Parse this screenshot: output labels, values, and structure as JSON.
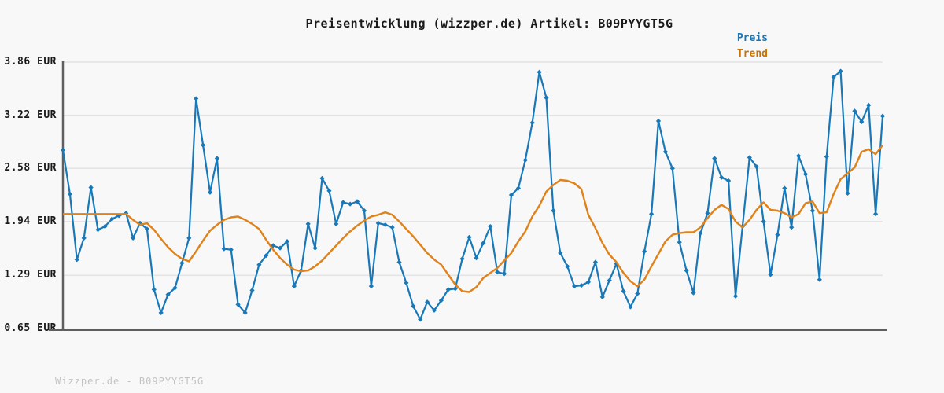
{
  "title": "Preisentwicklung (wizzper.de) Artikel: B09PYYGT5G",
  "legend": {
    "preis": "Preis",
    "trend": "Trend"
  },
  "footer": "Wizzper.de - B09PYYGT5G",
  "colors": {
    "background": "#f8f8f8",
    "price_line": "#1878b8",
    "trend_line": "#e0821a",
    "legend_preis_text": "#1777b8",
    "legend_trend_text": "#cc7400",
    "grid": "#e3e3e3",
    "axis": "#5f5f5f",
    "title_text": "#1a1a1a",
    "footer_text": "#c3c3c3"
  },
  "chart_data": {
    "type": "line",
    "title": "Preisentwicklung (wizzper.de) Artikel: B09PYYGT5G",
    "xlabel": "",
    "ylabel": "EUR",
    "x_tick_labels": [],
    "y_ticks": [
      "3.86 EUR",
      "3.22 EUR",
      "2.58 EUR",
      "1.94 EUR",
      "1.29 EUR",
      "0.65 EUR"
    ],
    "y_tick_values": [
      3.86,
      3.22,
      2.58,
      1.94,
      1.29,
      0.65
    ],
    "ylim": [
      0.65,
      3.86
    ],
    "grid": "horizontal",
    "legend_position": "top-right",
    "series": [
      {
        "name": "Preis",
        "marker": "diamond",
        "values": [
          2.8,
          2.27,
          1.48,
          1.74,
          2.35,
          1.84,
          1.88,
          1.97,
          2.01,
          2.04,
          1.74,
          1.92,
          1.85,
          1.12,
          0.84,
          1.06,
          1.14,
          1.44,
          1.74,
          3.42,
          2.86,
          2.29,
          2.7,
          1.61,
          1.6,
          0.94,
          0.84,
          1.11,
          1.42,
          1.53,
          1.65,
          1.62,
          1.7,
          1.16,
          1.35,
          1.91,
          1.62,
          2.46,
          2.31,
          1.91,
          2.17,
          2.15,
          2.18,
          2.07,
          1.16,
          1.92,
          1.9,
          1.87,
          1.45,
          1.2,
          0.92,
          0.76,
          0.97,
          0.87,
          0.99,
          1.12,
          1.13,
          1.49,
          1.75,
          1.5,
          1.68,
          1.88,
          1.33,
          1.31,
          2.26,
          2.34,
          2.68,
          3.13,
          3.74,
          3.43,
          2.07,
          1.56,
          1.4,
          1.16,
          1.17,
          1.21,
          1.45,
          1.03,
          1.23,
          1.43,
          1.1,
          0.91,
          1.07,
          1.58,
          2.03,
          3.15,
          2.78,
          2.58,
          1.69,
          1.35,
          1.08,
          1.8,
          2.04,
          2.7,
          2.47,
          2.43,
          1.04,
          1.88,
          2.71,
          2.6,
          1.94,
          1.3,
          1.78,
          2.34,
          1.87,
          2.73,
          2.51,
          2.07,
          1.24,
          2.72,
          3.68,
          3.75,
          2.28,
          3.27,
          3.14,
          3.34,
          2.03,
          3.21
        ]
      },
      {
        "name": "Trend",
        "marker": "none",
        "values": [
          2.03,
          2.03,
          2.03,
          2.03,
          2.03,
          2.03,
          2.03,
          2.03,
          2.03,
          2.03,
          1.96,
          1.9,
          1.92,
          1.84,
          1.73,
          1.63,
          1.55,
          1.49,
          1.46,
          1.58,
          1.71,
          1.83,
          1.9,
          1.96,
          1.99,
          2.0,
          1.96,
          1.91,
          1.85,
          1.72,
          1.6,
          1.5,
          1.42,
          1.36,
          1.34,
          1.35,
          1.4,
          1.47,
          1.56,
          1.65,
          1.74,
          1.82,
          1.89,
          1.95,
          2.0,
          2.02,
          2.05,
          2.02,
          1.94,
          1.85,
          1.76,
          1.66,
          1.56,
          1.48,
          1.42,
          1.3,
          1.18,
          1.1,
          1.09,
          1.15,
          1.26,
          1.32,
          1.38,
          1.47,
          1.56,
          1.7,
          1.82,
          2.0,
          2.13,
          2.3,
          2.38,
          2.44,
          2.43,
          2.4,
          2.33,
          2.02,
          1.86,
          1.68,
          1.54,
          1.45,
          1.32,
          1.22,
          1.16,
          1.24,
          1.4,
          1.55,
          1.7,
          1.78,
          1.8,
          1.81,
          1.81,
          1.87,
          1.98,
          2.08,
          2.14,
          2.09,
          1.94,
          1.87,
          1.96,
          2.08,
          2.17,
          2.08,
          2.07,
          2.04,
          1.99,
          2.03,
          2.16,
          2.18,
          2.04,
          2.05,
          2.27,
          2.45,
          2.52,
          2.59,
          2.78,
          2.81,
          2.75,
          2.86
        ]
      }
    ]
  }
}
